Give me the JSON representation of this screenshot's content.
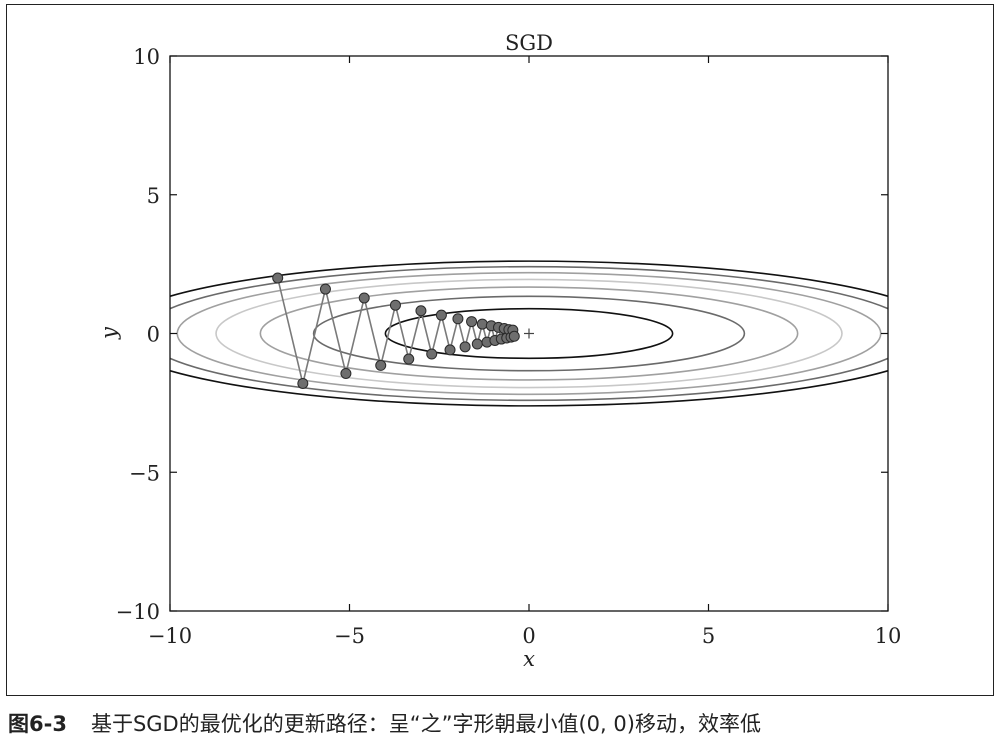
{
  "chart_data": {
    "type": "line",
    "title": "SGD",
    "xlabel": "x",
    "ylabel": "y",
    "xlim": [
      -10,
      10
    ],
    "ylim": [
      -10,
      10
    ],
    "x_ticks": [
      -10,
      -5,
      0,
      5,
      10
    ],
    "y_ticks": [
      -10,
      -5,
      0,
      5,
      10
    ],
    "x_tick_labels": [
      "−10",
      "−5",
      "0",
      "5",
      "10"
    ],
    "y_tick_labels": [
      "−10",
      "−5",
      "0",
      "5",
      "10"
    ],
    "grid": false,
    "function_contours": {
      "form": "x^2/20 + y^2",
      "levels": [
        0.8,
        1.8,
        2.8,
        3.8,
        4.8,
        5.8,
        6.8
      ],
      "colors": [
        "#111111",
        "#6a6a6a",
        "#a0a0a0",
        "#c8c8c8",
        "#a0a0a0",
        "#6a6a6a",
        "#111111"
      ]
    },
    "minimum_marker": {
      "x": 0,
      "y": 0,
      "symbol": "+"
    },
    "series": [
      {
        "color": "#7a7a7a",
        "points": [
          [
            -7.0,
            2.0
          ],
          [
            -6.3,
            -1.8
          ],
          [
            -5.67,
            1.6
          ],
          [
            -5.1,
            -1.44
          ],
          [
            -4.59,
            1.28
          ],
          [
            -4.13,
            -1.15
          ],
          [
            -3.72,
            1.02
          ],
          [
            -3.35,
            -0.92
          ],
          [
            -3.01,
            0.82
          ],
          [
            -2.71,
            -0.74
          ],
          [
            -2.44,
            0.66
          ],
          [
            -2.2,
            -0.59
          ],
          [
            -1.98,
            0.53
          ],
          [
            -1.78,
            -0.48
          ],
          [
            -1.6,
            0.43
          ],
          [
            -1.44,
            -0.38
          ],
          [
            -1.3,
            0.34
          ],
          [
            -1.17,
            -0.31
          ],
          [
            -1.05,
            0.28
          ],
          [
            -0.95,
            -0.25
          ],
          [
            -0.85,
            0.22
          ],
          [
            -0.77,
            -0.2
          ],
          [
            -0.69,
            0.18
          ],
          [
            -0.62,
            -0.16
          ],
          [
            -0.56,
            0.14
          ],
          [
            -0.5,
            -0.13
          ],
          [
            -0.45,
            0.12
          ],
          [
            -0.41,
            -0.1
          ]
        ]
      }
    ]
  },
  "caption": {
    "label": "图6-3",
    "text": "基于SGD的最优化的更新路径：呈“之”字形朝最小值(0, 0)移动，效率低"
  }
}
